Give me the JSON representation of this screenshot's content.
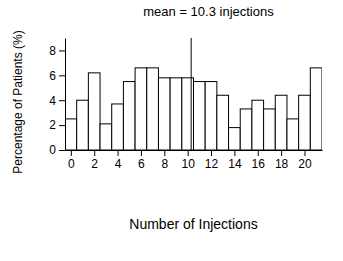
{
  "chart_data": {
    "type": "histogram",
    "title": "mean = 10.3 injections",
    "x_label": "Number of Injections",
    "y_label": "Percentage of Patients (%)",
    "bins": [
      -0.5,
      0.5,
      1.5,
      2.5,
      3.5,
      4.5,
      5.5,
      6.5,
      7.5,
      8.5,
      9.5,
      10.5,
      11.5,
      12.5,
      13.5,
      14.5,
      15.5,
      16.5,
      17.5,
      18.5,
      19.5,
      20.5,
      21.5
    ],
    "values": [
      2.5,
      4.0,
      6.2,
      2.1,
      3.7,
      5.5,
      6.6,
      6.6,
      5.8,
      5.8,
      5.8,
      5.5,
      5.5,
      4.4,
      1.8,
      3.3,
      4.0,
      3.3,
      4.4,
      2.5,
      4.4,
      6.6
    ],
    "color": "#ffffff",
    "mean": 10.3,
    "xlim": [
      -0.5,
      21.5
    ],
    "xticks": [
      0,
      2,
      4,
      6,
      8,
      10,
      12,
      14,
      16,
      18,
      20
    ],
    "ylim": [
      0,
      9
    ],
    "yticks": [
      0,
      2,
      4,
      6,
      8
    ],
    "grid": false
  }
}
